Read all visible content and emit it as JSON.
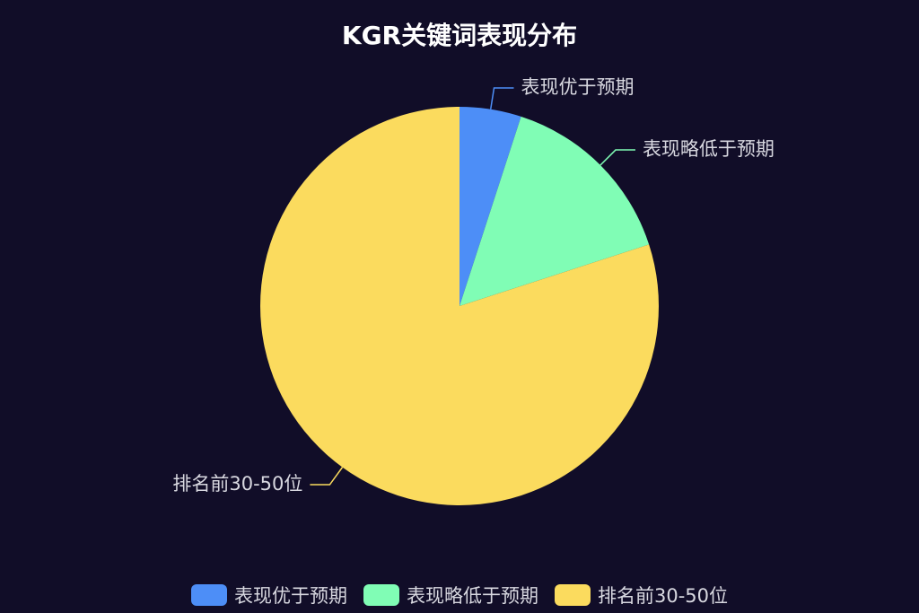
{
  "chart_data": {
    "type": "pie",
    "title": "KGR关键词表现分布",
    "categories": [
      "表现优于预期",
      "表现略低于预期",
      "排名前30-50位"
    ],
    "values": [
      5,
      15,
      80
    ],
    "colors": [
      "#4d8ef7",
      "#80fdb5",
      "#fbdb5e"
    ],
    "legend": "bottom-center"
  },
  "legend": {
    "items": [
      {
        "label": "表现优于预期",
        "color": "#4d8ef7"
      },
      {
        "label": "表现略低于预期",
        "color": "#80fdb5"
      },
      {
        "label": "排名前30-50位",
        "color": "#fbdb5e"
      }
    ]
  }
}
